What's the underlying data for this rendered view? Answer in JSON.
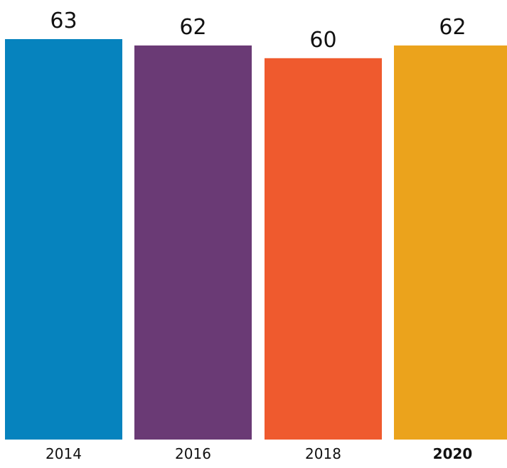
{
  "chart_data": {
    "type": "bar",
    "title": "",
    "xlabel": "",
    "ylabel": "",
    "categories": [
      "2014",
      "2016",
      "2018",
      "2020"
    ],
    "values": [
      63,
      62,
      60,
      62
    ],
    "value_labels": [
      "63",
      "62",
      "60",
      "62"
    ],
    "colors": [
      "#0683BE",
      "#6A3A75",
      "#EF5A2E",
      "#EBA31C"
    ],
    "emphasized_category": "2020",
    "ylim": [
      0,
      63
    ],
    "grid": false,
    "legend": "none"
  }
}
